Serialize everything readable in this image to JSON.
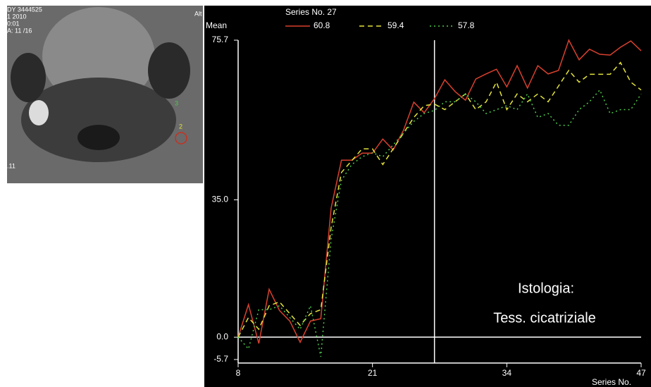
{
  "image_labels": [
    "DY 3444525",
    "1 2010",
    "0:01",
    "A: 11 /16",
    "Alt",
    ".11",
    "3",
    "2"
  ],
  "chart_data": {
    "type": "line",
    "y_label": "Mean",
    "x_label": "Series No.",
    "legend_title": "Series No. 27",
    "x": [
      8,
      9,
      10,
      11,
      12,
      13,
      14,
      15,
      16,
      17,
      18,
      19,
      20,
      21,
      22,
      23,
      24,
      25,
      26,
      27,
      28,
      29,
      30,
      31,
      32,
      33,
      34,
      35,
      36,
      37,
      38,
      39,
      40,
      41,
      42,
      43,
      44,
      45,
      46,
      47
    ],
    "series": [
      {
        "name": "60.8",
        "color": "#d8402e",
        "dash": "solid",
        "values": [
          0,
          8.3,
          -1.6,
          12.2,
          6.8,
          4.1,
          -1.3,
          4.1,
          4.7,
          32.9,
          45.1,
          45.1,
          46.9,
          46.9,
          50.5,
          47.7,
          52.7,
          59.9,
          57.2,
          60.8,
          65.6,
          62.6,
          60.4,
          65.8,
          67.1,
          68.3,
          63.8,
          69.2,
          63.5,
          69.2,
          67.1,
          68.0,
          75.7,
          70.7,
          73.4,
          72.1,
          71.9,
          73.9,
          75.5,
          73.0
        ]
      },
      {
        "name": "59.4",
        "color": "#e4e43c",
        "dash": "dashed",
        "values": [
          0,
          5,
          2,
          8,
          9,
          6,
          3,
          6,
          7,
          28,
          42,
          45,
          48,
          48,
          44,
          48,
          52,
          56,
          59,
          59.4,
          58,
          60,
          62,
          58,
          60,
          65,
          58,
          62,
          60,
          62,
          60,
          64,
          68,
          65,
          67,
          67,
          67,
          70,
          65,
          63
        ]
      },
      {
        "name": "57.8",
        "color": "#4cc84c",
        "dash": "dotted",
        "values": [
          0,
          -3,
          7,
          7,
          8,
          5,
          2,
          8,
          -5,
          25,
          40,
          44,
          46,
          47,
          46,
          49,
          52,
          55,
          57,
          57.8,
          60,
          60,
          62,
          60,
          57,
          58,
          59,
          58,
          62,
          56,
          57,
          54,
          54,
          58,
          60,
          63,
          57,
          58,
          58,
          62
        ]
      }
    ],
    "xlim": [
      8,
      47
    ],
    "xticks": [
      8,
      21,
      34,
      47
    ],
    "ylim": [
      -5.7,
      75.7
    ],
    "yticks": [
      -5.7,
      {
        "value": 0,
        "label": "0.0"
      },
      {
        "value": 35,
        "label": "35.0"
      },
      75.7
    ],
    "cursor_x": 27,
    "annotations": [
      "Istologia:",
      "Tess. cicatriziale"
    ]
  }
}
